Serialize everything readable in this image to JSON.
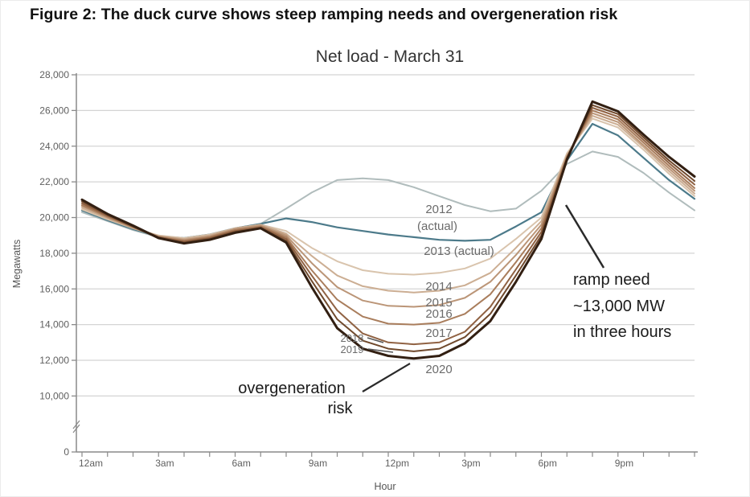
{
  "figure": {
    "title": "Figure 2: The duck curve shows steep ramping needs and overgeneration risk"
  },
  "colors": {
    "grid": "#d4d4d4",
    "axis": "#8a8a8a",
    "annotation_line": "#2a2a2a",
    "label_leader_line": "#555555"
  },
  "chart_data": {
    "type": "line",
    "title": "Net load - March 31",
    "xlabel": "Hour",
    "ylabel": "Megawatts",
    "grid": "horizontal only",
    "legend_position": "inline labels on curves",
    "axis_note": "y axis broken between 0 and 10,000",
    "ylim": [
      0,
      28000
    ],
    "x_hours": [
      0,
      1,
      2,
      3,
      4,
      5,
      6,
      7,
      8,
      9,
      10,
      11,
      12,
      13,
      14,
      15,
      16,
      17,
      18,
      19,
      20,
      21,
      22,
      23,
      24
    ],
    "x_tick_labels": [
      {
        "hour": 0,
        "label": "12am"
      },
      {
        "hour": 3,
        "label": "3am"
      },
      {
        "hour": 6,
        "label": "6am"
      },
      {
        "hour": 9,
        "label": "9am"
      },
      {
        "hour": 12,
        "label": "12pm"
      },
      {
        "hour": 15,
        "label": "3pm"
      },
      {
        "hour": 18,
        "label": "6pm"
      },
      {
        "hour": 21,
        "label": "9pm"
      }
    ],
    "y_ticks": [
      {
        "value": 28000,
        "label": "28,000"
      },
      {
        "value": 26000,
        "label": "26,000"
      },
      {
        "value": 24000,
        "label": "24,000"
      },
      {
        "value": 22000,
        "label": "22,000"
      },
      {
        "value": 20000,
        "label": "20,000"
      },
      {
        "value": 18000,
        "label": "18,000"
      },
      {
        "value": 16000,
        "label": "16,000"
      },
      {
        "value": 14000,
        "label": "14,000"
      },
      {
        "value": 12000,
        "label": "12,000"
      },
      {
        "value": 10000,
        "label": "10,000"
      },
      {
        "value": 0,
        "label": "0"
      }
    ],
    "series": [
      {
        "name": "2012",
        "label": "2012",
        "sublabel": "(actual)",
        "color": "#b0bcbc",
        "width": 2,
        "values": [
          20300,
          19800,
          19300,
          18900,
          18800,
          19000,
          19350,
          19650,
          20500,
          21400,
          22100,
          22200,
          22100,
          21700,
          21200,
          20700,
          20350,
          20500,
          21500,
          23000,
          23700,
          23400,
          22500,
          21400,
          20400
        ]
      },
      {
        "name": "2013",
        "label": "2013 (actual)",
        "color": "#4c7a8a",
        "width": 2.2,
        "values": [
          20400,
          19850,
          19350,
          18950,
          18850,
          19050,
          19400,
          19650,
          19950,
          19750,
          19450,
          19250,
          19050,
          18900,
          18750,
          18700,
          18750,
          19500,
          20300,
          23200,
          25250,
          24600,
          23350,
          22100,
          21050
        ]
      },
      {
        "name": "2014",
        "label": "2014",
        "color": "#d9c4ad",
        "width": 2,
        "values": [
          20450,
          19900,
          19400,
          19000,
          18850,
          19050,
          19400,
          19600,
          19250,
          18300,
          17550,
          17050,
          16850,
          16800,
          16900,
          17150,
          17700,
          18800,
          20000,
          23600,
          25550,
          25050,
          23800,
          22450,
          21200
        ]
      },
      {
        "name": "2015",
        "label": "2015",
        "color": "#ccae93",
        "width": 2,
        "values": [
          20550,
          19950,
          19400,
          18950,
          18800,
          19000,
          19400,
          19600,
          19100,
          17850,
          16750,
          16150,
          15900,
          15800,
          15900,
          16200,
          16900,
          18300,
          19800,
          23500,
          25700,
          25200,
          23950,
          22600,
          21350
        ]
      },
      {
        "name": "2016",
        "label": "2016",
        "color": "#bb9577",
        "width": 2,
        "values": [
          20650,
          20000,
          19450,
          18950,
          18750,
          18950,
          19350,
          19550,
          19000,
          17450,
          16100,
          15350,
          15050,
          15000,
          15100,
          15500,
          16400,
          17900,
          19600,
          23450,
          25850,
          25350,
          24050,
          22750,
          21500
        ]
      },
      {
        "name": "2017",
        "label": "2017",
        "color": "#a97d5c",
        "width": 2,
        "values": [
          20700,
          20050,
          19450,
          18900,
          18700,
          18900,
          19300,
          19500,
          18900,
          17050,
          15400,
          14450,
          14050,
          14000,
          14100,
          14600,
          15700,
          17500,
          19400,
          23400,
          26000,
          25500,
          24200,
          22900,
          21650
        ]
      },
      {
        "name": "2018",
        "label": "2018",
        "color": "#906243",
        "width": 2,
        "values": [
          20800,
          20100,
          19500,
          18900,
          18650,
          18850,
          19250,
          19450,
          18800,
          16750,
          14800,
          13500,
          13000,
          12900,
          13000,
          13600,
          15000,
          17100,
          19200,
          23350,
          26150,
          25650,
          24350,
          23050,
          21850
        ]
      },
      {
        "name": "2019",
        "label": "2019",
        "color": "#70492c",
        "width": 2,
        "values": [
          20900,
          20150,
          19500,
          18850,
          18600,
          18800,
          19200,
          19400,
          18700,
          16450,
          14300,
          13100,
          12650,
          12500,
          12650,
          13300,
          14600,
          16750,
          19000,
          23300,
          26300,
          25800,
          24500,
          23200,
          22050
        ]
      },
      {
        "name": "2020",
        "label": "2020",
        "color": "#321f12",
        "width": 3,
        "values": [
          21000,
          20200,
          19550,
          18850,
          18550,
          18750,
          19150,
          19400,
          18600,
          16100,
          13800,
          12650,
          12250,
          12100,
          12250,
          12950,
          14200,
          16400,
          18800,
          23250,
          26500,
          25950,
          24650,
          23400,
          22300
        ]
      }
    ],
    "annotations": {
      "overgeneration_line1": "overgeneration",
      "overgeneration_line2": "risk",
      "ramp_line1": "ramp need",
      "ramp_line2": "~13,000 MW",
      "ramp_line3": "in three hours"
    }
  }
}
